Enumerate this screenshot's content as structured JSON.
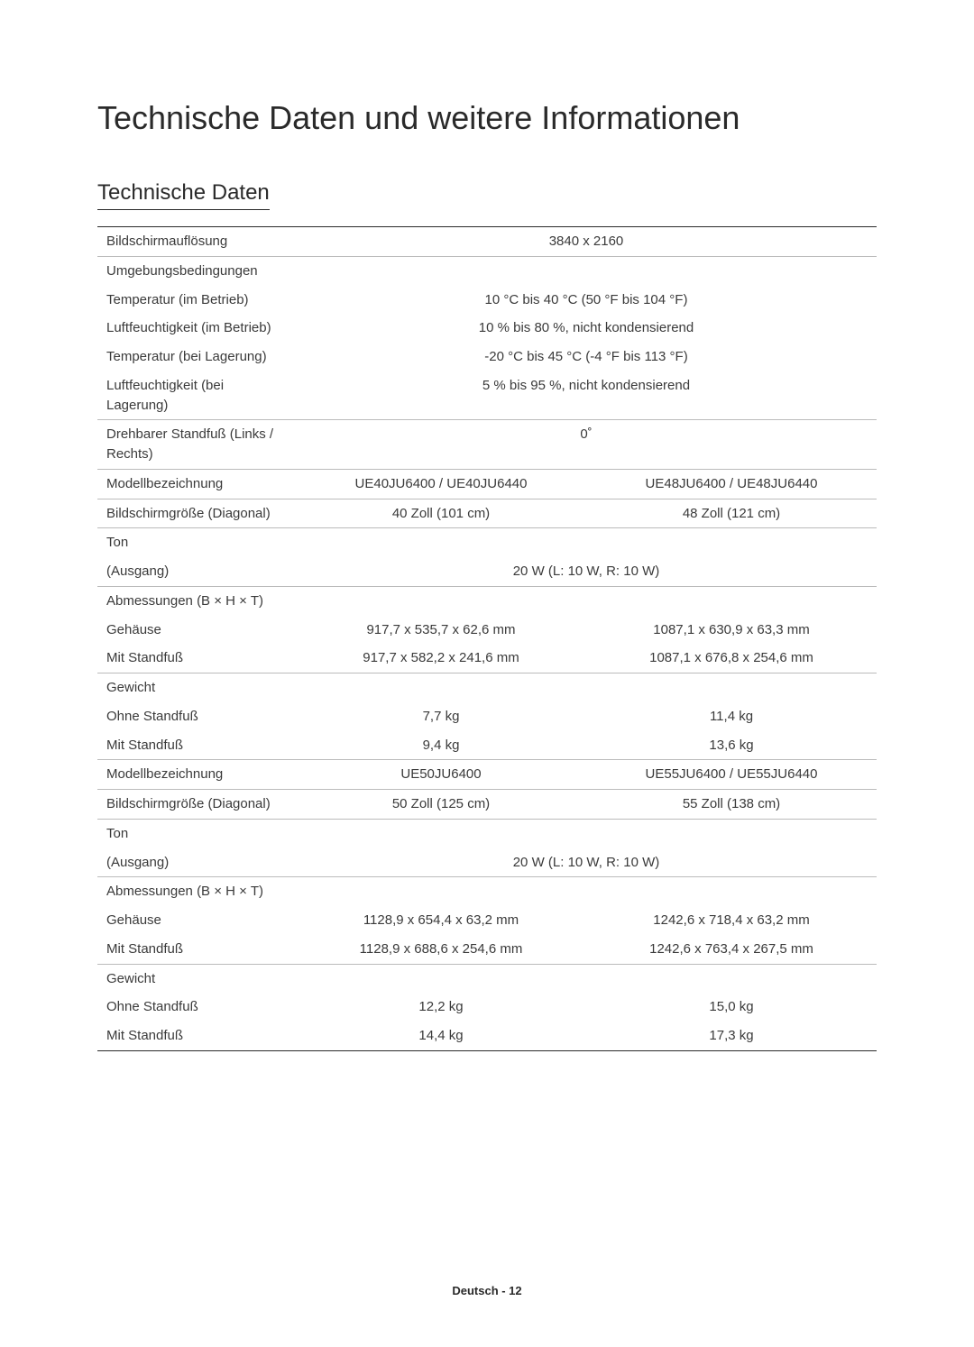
{
  "title": "Technische Daten und weitere Informationen",
  "subtitle": "Technische Daten",
  "footer": "Deutsch - 12",
  "labels": {
    "resolution": "Bildschirmauflösung",
    "env": "Umgebungsbedingungen",
    "temp_op": "Temperatur (im Betrieb)",
    "hum_op": "Luftfeuchtigkeit (im Betrieb)",
    "temp_st": "Temperatur (bei Lagerung)",
    "hum_st": "Luftfeuchtigkeit (bei Lagerung)",
    "swivel": "Drehbarer Standfuß (Links / Rechts)",
    "model": "Modellbezeichnung",
    "screensize": "Bildschirmgröße (Diagonal)",
    "sound": "Ton",
    "output": "(Ausgang)",
    "dims": "Abmessungen (B × H × T)",
    "body": "Gehäuse",
    "withstand": "Mit Standfuß",
    "weight": "Gewicht",
    "nostand": "Ohne Standfuß"
  },
  "values": {
    "resolution": "3840 x 2160",
    "temp_op": "10 °C bis 40 °C (50 °F bis 104 °F)",
    "hum_op": "10 % bis 80 %, nicht kondensierend",
    "temp_st": "-20 °C bis 45 °C (-4 °F bis 113 °F)",
    "hum_st": "5 % bis 95 %, nicht kondensierend",
    "swivel": "0˚",
    "audio": "20 W (L: 10 W, R: 10 W)"
  },
  "blocks": [
    {
      "model_a": "UE40JU6400 / UE40JU6440",
      "model_b": "UE48JU6400 / UE48JU6440",
      "size_a": "40 Zoll (101 cm)",
      "size_b": "48 Zoll (121 cm)",
      "body_a": "917,7 x 535,7 x 62,6 mm",
      "body_b": "1087,1 x 630,9 x 63,3 mm",
      "stand_a": "917,7 x 582,2 x 241,6 mm",
      "stand_b": "1087,1 x 676,8 x 254,6 mm",
      "wnostand_a": "7,7 kg",
      "wnostand_b": "11,4 kg",
      "wstand_a": "9,4 kg",
      "wstand_b": "13,6 kg"
    },
    {
      "model_a": "UE50JU6400",
      "model_b": "UE55JU6400 / UE55JU6440",
      "size_a": "50 Zoll (125 cm)",
      "size_b": "55 Zoll (138 cm)",
      "body_a": "1128,9 x 654,4 x 63,2 mm",
      "body_b": "1242,6 x 718,4 x 63,2 mm",
      "stand_a": "1128,9 x 688,6 x 254,6 mm",
      "stand_b": "1242,6 x 763,4 x 267,5 mm",
      "wnostand_a": "12,2 kg",
      "wnostand_b": "15,0 kg",
      "wstand_a": "14,4 kg",
      "wstand_b": "17,3 kg"
    }
  ]
}
